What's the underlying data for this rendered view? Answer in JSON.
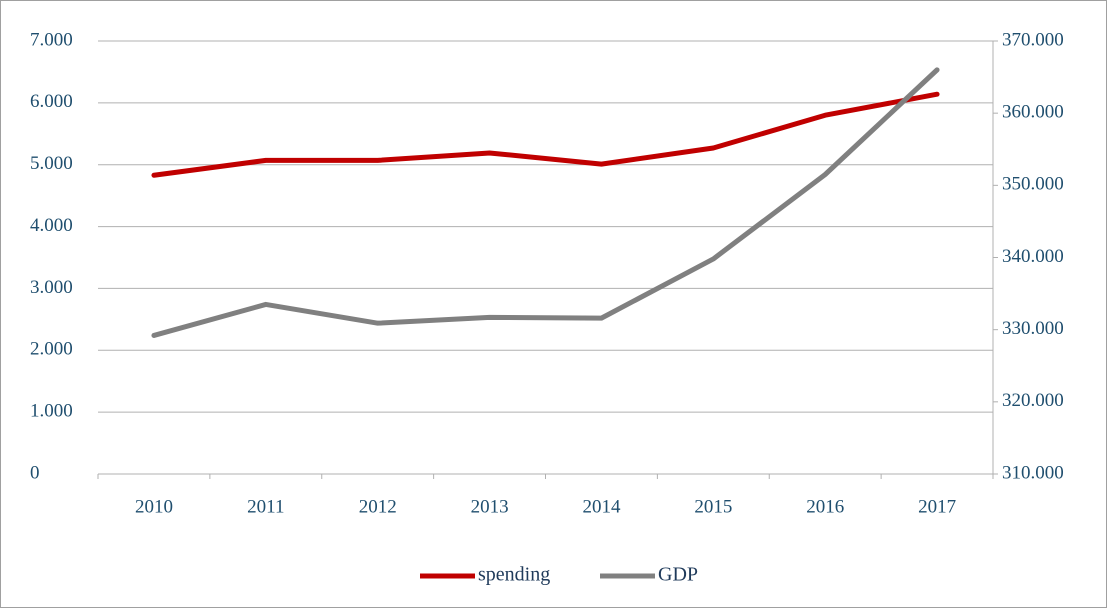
{
  "chart_data": {
    "type": "line",
    "categories": [
      "2010",
      "2011",
      "2012",
      "2013",
      "2014",
      "2015",
      "2016",
      "2017"
    ],
    "series": [
      {
        "name": "spending",
        "color": "#c00000",
        "values": [
          4830,
          5070,
          5070,
          5190,
          5010,
          5270,
          5800,
          6140
        ]
      },
      {
        "name": "GDP",
        "color": "#808080",
        "axis": "y2",
        "values": [
          329200,
          333500,
          330900,
          331700,
          331600,
          339800,
          351500,
          366000
        ]
      }
    ],
    "ylim": [
      0,
      7000
    ],
    "yticks": [
      0,
      {
        "value": 1000,
        "label": "1.000"
      },
      {
        "value": 2000,
        "label": "2.000"
      },
      {
        "value": 3000,
        "label": "3.000"
      },
      {
        "value": 4000,
        "label": "4.000"
      },
      {
        "value": 5000,
        "label": "5.000"
      },
      {
        "value": 6000,
        "label": "6.000"
      },
      {
        "value": 7000,
        "label": "7.000"
      }
    ],
    "y2lim": [
      310000,
      370000
    ],
    "y2ticks": [
      {
        "value": 310000,
        "label": "310.000"
      },
      {
        "value": 320000,
        "label": "320.000"
      },
      {
        "value": 330000,
        "label": "330.000"
      },
      {
        "value": 340000,
        "label": "340.000"
      },
      {
        "value": 350000,
        "label": "350.000"
      },
      {
        "value": 360000,
        "label": "360.000"
      },
      {
        "value": 370000,
        "label": "370.000"
      }
    ],
    "grid": true,
    "legend": "bottom"
  }
}
